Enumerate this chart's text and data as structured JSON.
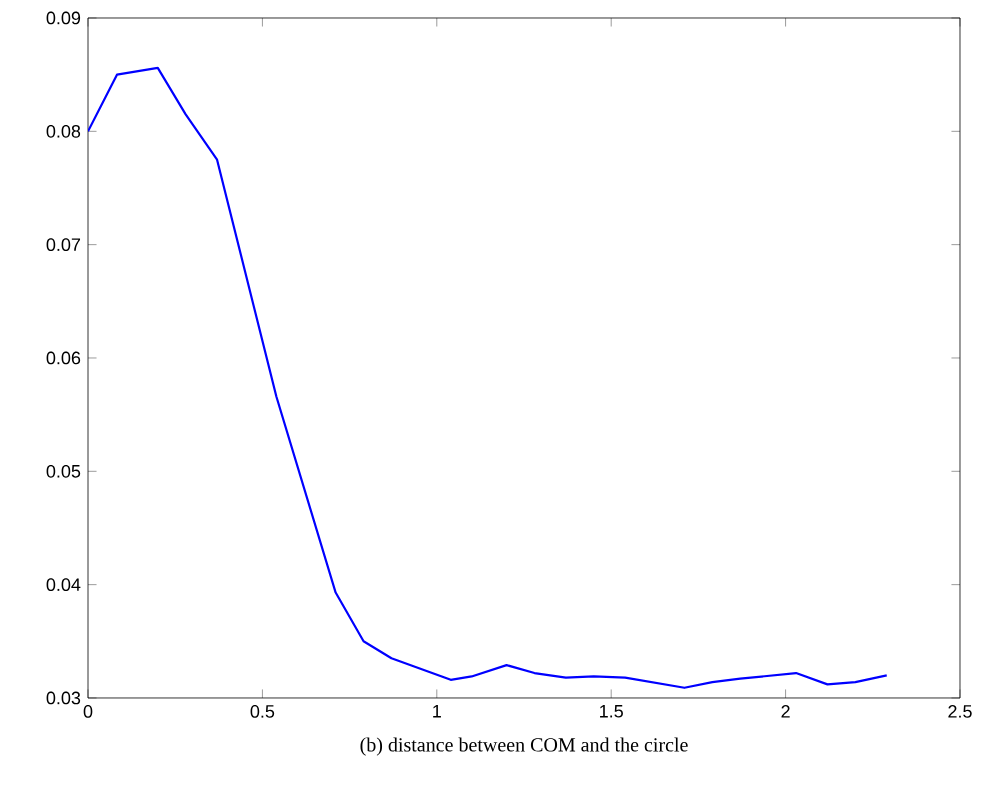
{
  "chart_data": {
    "type": "line",
    "xlabel": "(b) distance between COM and the circle",
    "x": [
      0,
      0.083,
      0.2,
      0.28,
      0.37,
      0.54,
      0.71,
      0.79,
      0.87,
      1.04,
      1.1,
      1.2,
      1.28,
      1.37,
      1.45,
      1.54,
      1.71,
      1.79,
      1.87,
      2.03,
      2.12,
      2.2,
      2.29
    ],
    "series": [
      {
        "color": "#0000ff",
        "values": [
          0.08,
          0.085,
          0.0856,
          0.0815,
          0.0775,
          0.0566,
          0.0393,
          0.035,
          0.0335,
          0.0316,
          0.0319,
          0.0329,
          0.0322,
          0.0318,
          0.0319,
          0.0318,
          0.0309,
          0.0314,
          0.0317,
          0.0322,
          0.0312,
          0.0314,
          0.032
        ]
      }
    ],
    "xlim": [
      0,
      2.5
    ],
    "ylim": [
      0.03,
      0.09
    ],
    "xticks": [
      0,
      0.5,
      1,
      1.5,
      2,
      2.5
    ],
    "yticks": [
      0.03,
      0.04,
      0.05,
      0.06,
      0.07,
      0.08,
      0.09
    ],
    "grid": false,
    "marker": "none",
    "line_style": "solid"
  }
}
